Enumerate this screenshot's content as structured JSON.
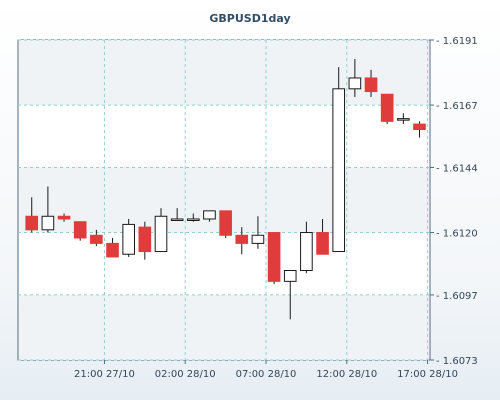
{
  "chart_data": {
    "type": "candlestick",
    "title": "GBPUSD1day",
    "y_ticks": [
      "1.6191",
      "1.6167",
      "1.6144",
      "1.6120",
      "1.6097",
      "1.6073"
    ],
    "x_ticks": [
      {
        "label": "21:00 27/10",
        "index": 4.5
      },
      {
        "label": "02:00 28/10",
        "index": 9.5
      },
      {
        "label": "07:00 28/10",
        "index": 14.5
      },
      {
        "label": "12:00 28/10",
        "index": 19.5
      },
      {
        "label": "17:00 28/10",
        "index": 24.5
      }
    ],
    "ylim": [
      1.6073,
      1.6191
    ],
    "grid": true,
    "colors": {
      "bullish": "#ffffff",
      "bearish": "#e03c3c",
      "outline": "#1a1a1a",
      "grid": "#8fd0d0",
      "axis": "#4d6a80",
      "title": "#334d66"
    },
    "candles": [
      {
        "open": 1.6126,
        "high": 1.6133,
        "low": 1.612,
        "close": 1.6121
      },
      {
        "open": 1.6121,
        "high": 1.6137,
        "low": 1.612,
        "close": 1.6126
      },
      {
        "open": 1.6126,
        "high": 1.6127,
        "low": 1.6124,
        "close": 1.6125
      },
      {
        "open": 1.6124,
        "high": 1.6124,
        "low": 1.6117,
        "close": 1.6118
      },
      {
        "open": 1.6119,
        "high": 1.6121,
        "low": 1.6115,
        "close": 1.6116
      },
      {
        "open": 1.6116,
        "high": 1.6118,
        "low": 1.6111,
        "close": 1.6111
      },
      {
        "open": 1.6112,
        "high": 1.6125,
        "low": 1.6111,
        "close": 1.6123
      },
      {
        "open": 1.6122,
        "high": 1.6124,
        "low": 1.611,
        "close": 1.6113
      },
      {
        "open": 1.6113,
        "high": 1.6129,
        "low": 1.6113,
        "close": 1.6126
      },
      {
        "open": 1.6125,
        "high": 1.6129,
        "low": 1.6125,
        "close": 1.6125
      },
      {
        "open": 1.6125,
        "high": 1.6127,
        "low": 1.6124,
        "close": 1.6125
      },
      {
        "open": 1.6125,
        "high": 1.6128,
        "low": 1.6124,
        "close": 1.6128
      },
      {
        "open": 1.6128,
        "high": 1.6128,
        "low": 1.6118,
        "close": 1.6119
      },
      {
        "open": 1.6119,
        "high": 1.6122,
        "low": 1.6112,
        "close": 1.6116
      },
      {
        "open": 1.6116,
        "high": 1.6126,
        "low": 1.6114,
        "close": 1.6119
      },
      {
        "open": 1.612,
        "high": 1.612,
        "low": 1.6101,
        "close": 1.6102
      },
      {
        "open": 1.6102,
        "high": 1.6106,
        "low": 1.6088,
        "close": 1.6106
      },
      {
        "open": 1.6106,
        "high": 1.6124,
        "low": 1.6105,
        "close": 1.612
      },
      {
        "open": 1.612,
        "high": 1.6125,
        "low": 1.6112,
        "close": 1.6112
      },
      {
        "open": 1.6113,
        "high": 1.6181,
        "low": 1.6113,
        "close": 1.6173
      },
      {
        "open": 1.6173,
        "high": 1.6184,
        "low": 1.617,
        "close": 1.6177
      },
      {
        "open": 1.6177,
        "high": 1.618,
        "low": 1.617,
        "close": 1.6172
      },
      {
        "open": 1.6171,
        "high": 1.6171,
        "low": 1.616,
        "close": 1.6161
      },
      {
        "open": 1.6162,
        "high": 1.6164,
        "low": 1.616,
        "close": 1.6162
      },
      {
        "open": 1.616,
        "high": 1.6161,
        "low": 1.6155,
        "close": 1.6158
      }
    ]
  }
}
